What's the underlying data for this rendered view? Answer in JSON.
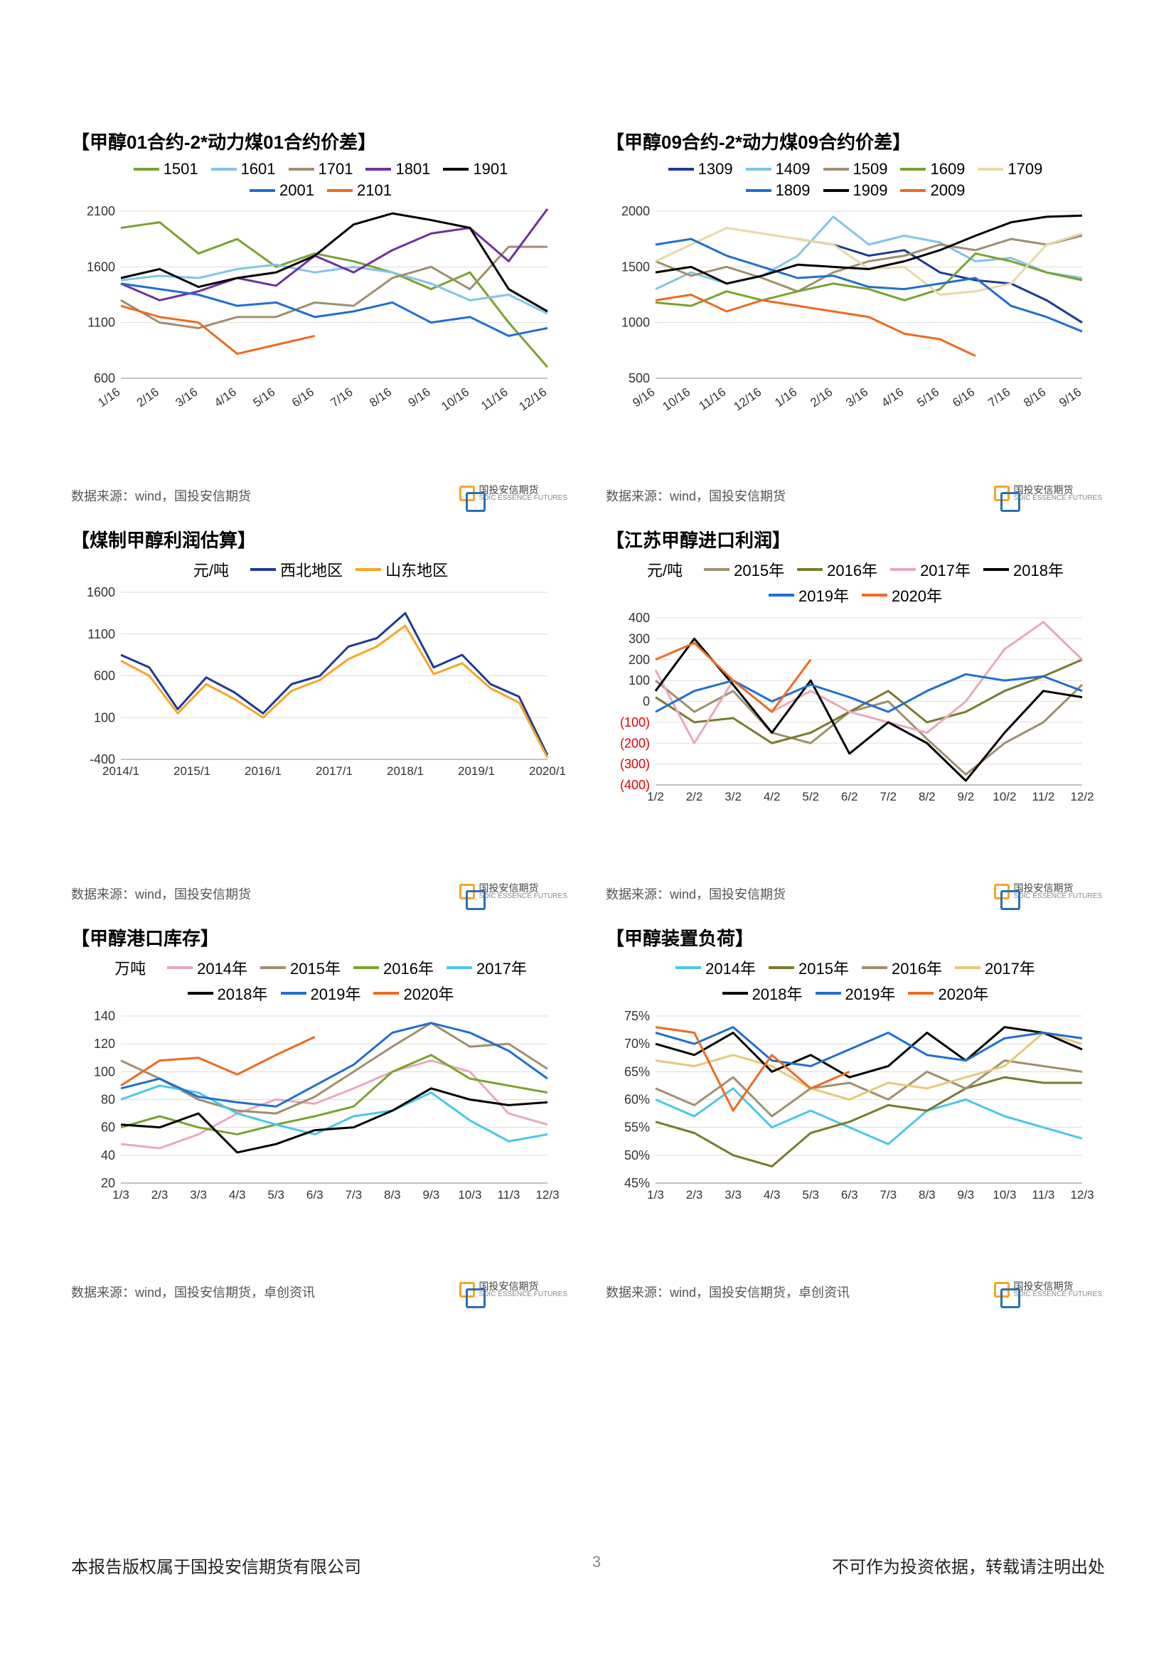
{
  "page": {
    "number": "3"
  },
  "footer": {
    "left": "本报告版权属于国投安信期货有限公司",
    "right": "不可作为投资依据，转载请注明出处"
  },
  "logo": {
    "text_cn": "国投安信期货",
    "text_en": "SDIC ESSENCE FUTURES"
  },
  "charts": [
    {
      "id": "c1",
      "title": "【甲醇01合约-2*动力煤01合约价差】",
      "source": "数据来源：wind，国投安信期货",
      "type": "line",
      "y": {
        "min": 600,
        "max": 2100,
        "step": 500,
        "ticks": [
          600,
          1100,
          1600,
          2100
        ]
      },
      "x": {
        "labels": [
          "1/16",
          "2/16",
          "3/16",
          "4/16",
          "5/16",
          "6/16",
          "7/16",
          "8/16",
          "9/16",
          "10/16",
          "11/16",
          "12/16"
        ],
        "rotate": -35
      },
      "series": [
        {
          "name": "1501",
          "color": "#7aa32e",
          "data": [
            1950,
            2000,
            1720,
            1850,
            1600,
            1720,
            1650,
            1550,
            1400,
            1550,
            1100,
            700
          ]
        },
        {
          "name": "1601",
          "color": "#7fc6e8",
          "data": [
            1480,
            1520,
            1500,
            1580,
            1620,
            1550,
            1600,
            1550,
            1450,
            1300,
            1350,
            1180
          ]
        },
        {
          "name": "1701",
          "color": "#a08f6f",
          "data": [
            1300,
            1100,
            1050,
            1150,
            1150,
            1280,
            1250,
            1500,
            1600,
            1400,
            1780,
            1780
          ]
        },
        {
          "name": "1801",
          "color": "#7030a0",
          "data": [
            1450,
            1300,
            1380,
            1500,
            1430,
            1700,
            1550,
            1750,
            1900,
            1950,
            1650,
            2120
          ]
        },
        {
          "name": "1901",
          "color": "#000000",
          "data": [
            1500,
            1580,
            1420,
            1500,
            1550,
            1700,
            1980,
            2080,
            2020,
            1950,
            1400,
            1200
          ]
        },
        {
          "name": "2001",
          "color": "#1f6fd1",
          "data": [
            1450,
            1400,
            1350,
            1250,
            1280,
            1150,
            1200,
            1280,
            1100,
            1150,
            980,
            1050
          ]
        },
        {
          "name": "2101",
          "color": "#ee6a1f",
          "data": [
            1250,
            1150,
            1100,
            820,
            900,
            980,
            null,
            null,
            null,
            null,
            null,
            null
          ]
        }
      ]
    },
    {
      "id": "c2",
      "title": "【甲醇09合约-2*动力煤09合约价差】",
      "source": "数据来源：wind，国投安信期货",
      "type": "line",
      "y": {
        "min": 500,
        "max": 2000,
        "step": 500,
        "ticks": [
          500,
          1000,
          1500,
          2000
        ]
      },
      "x": {
        "labels": [
          "9/16",
          "10/16",
          "11/16",
          "12/16",
          "1/16",
          "2/16",
          "3/16",
          "4/16",
          "5/16",
          "6/16",
          "7/16",
          "8/16",
          "9/16"
        ],
        "rotate": -35
      },
      "series": [
        {
          "name": "1309",
          "color": "#1f3a93",
          "data": [
            null,
            null,
            null,
            null,
            1750,
            1700,
            1600,
            1650,
            1450,
            1380,
            1350,
            1200,
            1000
          ]
        },
        {
          "name": "1409",
          "color": "#7fc6e8",
          "data": [
            1300,
            1450,
            1350,
            1420,
            1600,
            1950,
            1700,
            1780,
            1720,
            1550,
            1580,
            1450,
            1400
          ]
        },
        {
          "name": "1509",
          "color": "#a08f6f",
          "data": [
            1550,
            1420,
            1500,
            1400,
            1280,
            1450,
            1550,
            1600,
            1700,
            1650,
            1750,
            1700,
            1780
          ]
        },
        {
          "name": "1609",
          "color": "#7aa32e",
          "data": [
            1180,
            1150,
            1280,
            1200,
            1280,
            1350,
            1300,
            1200,
            1300,
            1620,
            1550,
            1450,
            1380
          ]
        },
        {
          "name": "1709",
          "color": "#e6d9a8",
          "data": [
            1550,
            1700,
            1850,
            1800,
            1750,
            1700,
            1480,
            1500,
            1250,
            1280,
            1350,
            1700,
            1800
          ]
        },
        {
          "name": "1809",
          "color": "#1f6fd1",
          "data": [
            1700,
            1750,
            1600,
            1500,
            1400,
            1420,
            1320,
            1300,
            1350,
            1400,
            1150,
            1050,
            920
          ]
        },
        {
          "name": "1909",
          "color": "#000000",
          "data": [
            1450,
            1500,
            1350,
            1420,
            1520,
            1500,
            1480,
            1550,
            1650,
            1780,
            1900,
            1950,
            1960
          ]
        },
        {
          "name": "2009",
          "color": "#ee6a1f",
          "data": [
            1200,
            1250,
            1100,
            1200,
            1150,
            1100,
            1050,
            900,
            850,
            700,
            null,
            null,
            null
          ]
        }
      ]
    },
    {
      "id": "c3",
      "title": "【煤制甲醇利润估算】",
      "unit": "元/吨",
      "source": "数据来源：wind，国投安信期货",
      "type": "line",
      "y": {
        "min": -400,
        "max": 1600,
        "step": 500,
        "ticks": [
          -400,
          100,
          600,
          1100,
          1600
        ]
      },
      "x": {
        "labels": [
          "2014/1",
          "2015/1",
          "2016/1",
          "2017/1",
          "2018/1",
          "2019/1",
          "2020/1"
        ],
        "rotate": 0
      },
      "series": [
        {
          "name": "西北地区",
          "color": "#1f3a93",
          "data": [
            850,
            700,
            200,
            580,
            400,
            150,
            500,
            600,
            950,
            1050,
            1350,
            700,
            850,
            500,
            350,
            -350
          ]
        },
        {
          "name": "山东地区",
          "color": "#f5a623",
          "data": [
            780,
            600,
            150,
            500,
            320,
            100,
            420,
            550,
            800,
            950,
            1200,
            620,
            750,
            450,
            280,
            -380
          ]
        }
      ],
      "x_dense": 16
    },
    {
      "id": "c4",
      "title": "【江苏甲醇进口利润】",
      "unit": "元/吨",
      "source": "数据来源：wind，国投安信期货",
      "type": "line",
      "y": {
        "min": -400,
        "max": 400,
        "step": 100,
        "ticks": [
          -400,
          -300,
          -200,
          -100,
          0,
          100,
          200,
          300,
          400
        ],
        "paren_neg": true
      },
      "x": {
        "labels": [
          "1/2",
          "2/2",
          "3/2",
          "4/2",
          "5/2",
          "6/2",
          "7/2",
          "8/2",
          "9/2",
          "10/2",
          "11/2",
          "12/2"
        ],
        "rotate": 0
      },
      "series": [
        {
          "name": "2015年",
          "color": "#a08f6f",
          "data": [
            100,
            -50,
            50,
            -150,
            -200,
            -50,
            0,
            -180,
            -350,
            -200,
            -100,
            80
          ]
        },
        {
          "name": "2016年",
          "color": "#7a7a2e",
          "data": [
            20,
            -100,
            -80,
            -200,
            -150,
            -50,
            50,
            -100,
            -50,
            50,
            120,
            200
          ]
        },
        {
          "name": "2017年",
          "color": "#e8a8c0",
          "data": [
            150,
            -200,
            100,
            -50,
            50,
            -50,
            -100,
            -150,
            0,
            250,
            380,
            200
          ]
        },
        {
          "name": "2018年",
          "color": "#000000",
          "data": [
            50,
            300,
            80,
            -150,
            100,
            -250,
            -100,
            -200,
            -380,
            -150,
            50,
            20
          ]
        },
        {
          "name": "2019年",
          "color": "#1f6fd1",
          "data": [
            -50,
            50,
            100,
            0,
            80,
            20,
            -50,
            50,
            130,
            100,
            120,
            50
          ]
        },
        {
          "name": "2020年",
          "color": "#ee6a1f",
          "data": [
            200,
            280,
            100,
            -50,
            200,
            null,
            null,
            null,
            null,
            null,
            null,
            null
          ]
        }
      ]
    },
    {
      "id": "c5",
      "title": "【甲醇港口库存】",
      "unit": "万吨",
      "source": "数据来源：wind，国投安信期货，卓创资讯",
      "type": "line",
      "y": {
        "min": 20,
        "max": 140,
        "step": 20,
        "ticks": [
          20,
          40,
          60,
          80,
          100,
          120,
          140
        ]
      },
      "x": {
        "labels": [
          "1/3",
          "2/3",
          "3/3",
          "4/3",
          "5/3",
          "6/3",
          "7/3",
          "8/3",
          "9/3",
          "10/3",
          "11/3",
          "12/3"
        ],
        "rotate": 0
      },
      "series": [
        {
          "name": "2014年",
          "color": "#e8a8c0",
          "data": [
            48,
            45,
            55,
            70,
            80,
            77,
            88,
            100,
            108,
            100,
            70,
            62
          ]
        },
        {
          "name": "2015年",
          "color": "#a08f6f",
          "data": [
            108,
            95,
            80,
            72,
            70,
            82,
            100,
            118,
            135,
            118,
            120,
            102
          ]
        },
        {
          "name": "2016年",
          "color": "#7aa32e",
          "data": [
            60,
            68,
            60,
            55,
            62,
            68,
            75,
            100,
            112,
            95,
            90,
            85
          ]
        },
        {
          "name": "2017年",
          "color": "#49c8e8",
          "data": [
            80,
            90,
            85,
            70,
            62,
            55,
            68,
            72,
            85,
            65,
            50,
            55
          ]
        },
        {
          "name": "2018年",
          "color": "#000000",
          "data": [
            62,
            60,
            70,
            42,
            48,
            58,
            60,
            72,
            88,
            80,
            76,
            78
          ]
        },
        {
          "name": "2019年",
          "color": "#1f6fd1",
          "data": [
            88,
            95,
            82,
            78,
            75,
            90,
            105,
            128,
            135,
            128,
            115,
            95
          ]
        },
        {
          "name": "2020年",
          "color": "#ee6a1f",
          "data": [
            90,
            108,
            110,
            98,
            112,
            125,
            null,
            null,
            null,
            null,
            null,
            null
          ]
        }
      ]
    },
    {
      "id": "c6",
      "title": "【甲醇装置负荷】",
      "source": "数据来源：wind，国投安信期货，卓创资讯",
      "type": "line",
      "y": {
        "min": 45,
        "max": 75,
        "step": 5,
        "ticks": [
          45,
          50,
          55,
          60,
          65,
          70,
          75
        ],
        "suffix": "%"
      },
      "x": {
        "labels": [
          "1/3",
          "2/3",
          "3/3",
          "4/3",
          "5/3",
          "6/3",
          "7/3",
          "8/3",
          "9/3",
          "10/3",
          "11/3",
          "12/3"
        ],
        "rotate": 0
      },
      "series": [
        {
          "name": "2014年",
          "color": "#49c8e8",
          "data": [
            60,
            57,
            62,
            55,
            58,
            55,
            52,
            58,
            60,
            57,
            55,
            53
          ]
        },
        {
          "name": "2015年",
          "color": "#7a7a2e",
          "data": [
            56,
            54,
            50,
            48,
            54,
            56,
            59,
            58,
            62,
            64,
            63,
            63
          ]
        },
        {
          "name": "2016年",
          "color": "#a08f6f",
          "data": [
            62,
            59,
            64,
            57,
            62,
            63,
            60,
            65,
            62,
            67,
            66,
            65
          ]
        },
        {
          "name": "2017年",
          "color": "#e6c978",
          "data": [
            67,
            66,
            68,
            66,
            62,
            60,
            63,
            62,
            64,
            66,
            72,
            70
          ]
        },
        {
          "name": "2018年",
          "color": "#000000",
          "data": [
            70,
            68,
            72,
            65,
            68,
            64,
            66,
            72,
            67,
            73,
            72,
            69
          ]
        },
        {
          "name": "2019年",
          "color": "#1f6fd1",
          "data": [
            72,
            70,
            73,
            67,
            66,
            69,
            72,
            68,
            67,
            71,
            72,
            71
          ]
        },
        {
          "name": "2020年",
          "color": "#ee6a1f",
          "data": [
            73,
            72,
            58,
            68,
            62,
            65,
            null,
            null,
            null,
            null,
            null,
            null
          ]
        }
      ]
    }
  ]
}
